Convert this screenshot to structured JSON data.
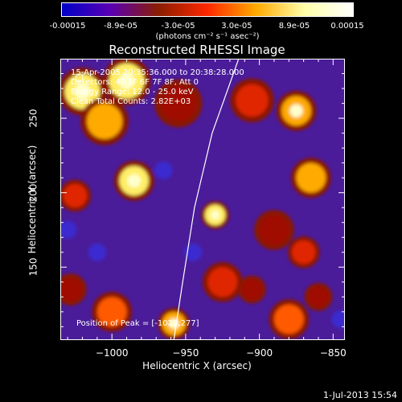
{
  "colorbar": {
    "min": -0.00015,
    "max": 0.00015,
    "ticks": [
      {
        "value": -0.00015,
        "label": "-0.00015"
      },
      {
        "value": -8.9e-05,
        "label": "-8.9e-05"
      },
      {
        "value": -3e-05,
        "label": "-3.0e-05"
      },
      {
        "value": 3e-05,
        "label": "3.0e-05"
      },
      {
        "value": 8.9e-05,
        "label": "8.9e-05"
      },
      {
        "value": 0.00015,
        "label": "0.00015"
      }
    ],
    "units": "(photons cm⁻² s⁻¹ asec⁻²)",
    "colormap": [
      "#0000c8",
      "#5a00b4",
      "#8c1e00",
      "#ff2800",
      "#ffaa00",
      "#ffffaa",
      "#ffffff"
    ]
  },
  "chart_data": {
    "type": "heatmap",
    "title": "Reconstructed RHESSI Image",
    "xlabel": "Heliocentric X (arcsec)",
    "ylabel": "Heliocentric Y (arcsec)",
    "xlim": [
      -1035,
      -842
    ],
    "ylim": [
      101,
      290
    ],
    "xticks": [
      {
        "value": -1000,
        "label": "−1000"
      },
      {
        "value": -950,
        "label": "−950"
      },
      {
        "value": -900,
        "label": "−900"
      },
      {
        "value": -850,
        "label": "−850"
      }
    ],
    "yticks": [
      {
        "value": 150,
        "label": "150"
      },
      {
        "value": 200,
        "label": "200"
      },
      {
        "value": 250,
        "label": "250"
      }
    ],
    "grid": false,
    "limb_curve": [
      [
        -958,
        101
      ],
      [
        -952,
        140
      ],
      [
        -944,
        190
      ],
      [
        -932,
        240
      ],
      [
        -914,
        290
      ]
    ],
    "peak": {
      "x": -1022,
      "y": 277
    },
    "blobs": [
      {
        "x": -1020,
        "y": 268,
        "r": 12,
        "v": 1.0
      },
      {
        "x": -990,
        "y": 275,
        "r": 12,
        "v": 0.95
      },
      {
        "x": -1005,
        "y": 248,
        "r": 12,
        "v": 0.85
      },
      {
        "x": -985,
        "y": 208,
        "r": 10,
        "v": 0.95
      },
      {
        "x": -1025,
        "y": 198,
        "r": 8,
        "v": 0.65
      },
      {
        "x": -955,
        "y": 260,
        "r": 12,
        "v": 0.55
      },
      {
        "x": -1000,
        "y": 120,
        "r": 10,
        "v": 0.7
      },
      {
        "x": -1028,
        "y": 135,
        "r": 8,
        "v": 0.55
      },
      {
        "x": -958,
        "y": 112,
        "r": 8,
        "v": 0.9
      },
      {
        "x": -930,
        "y": 185,
        "r": 7,
        "v": 0.95
      },
      {
        "x": -925,
        "y": 140,
        "r": 10,
        "v": 0.6
      },
      {
        "x": -905,
        "y": 262,
        "r": 11,
        "v": 0.6
      },
      {
        "x": -875,
        "y": 255,
        "r": 10,
        "v": 0.9
      },
      {
        "x": -865,
        "y": 210,
        "r": 10,
        "v": 0.85
      },
      {
        "x": -890,
        "y": 175,
        "r": 10,
        "v": 0.55
      },
      {
        "x": -870,
        "y": 160,
        "r": 8,
        "v": 0.6
      },
      {
        "x": -880,
        "y": 115,
        "r": 10,
        "v": 0.7
      },
      {
        "x": -905,
        "y": 135,
        "r": 7,
        "v": 0.5
      },
      {
        "x": -860,
        "y": 130,
        "r": 7,
        "v": 0.55
      }
    ],
    "annotations": [
      "15-Apr-2005 20:35:36.000 to 20:38:28.000",
      "Detectors: 4F 5F 6F 7F 8F, Att 0",
      "Energy Range: 12.0 - 25.0 keV",
      "Clean    Total Counts: 2.82E+03"
    ],
    "peak_label": "Position of Peak = [-1022,277]"
  },
  "footer": "1-Jul-2013 15:54"
}
